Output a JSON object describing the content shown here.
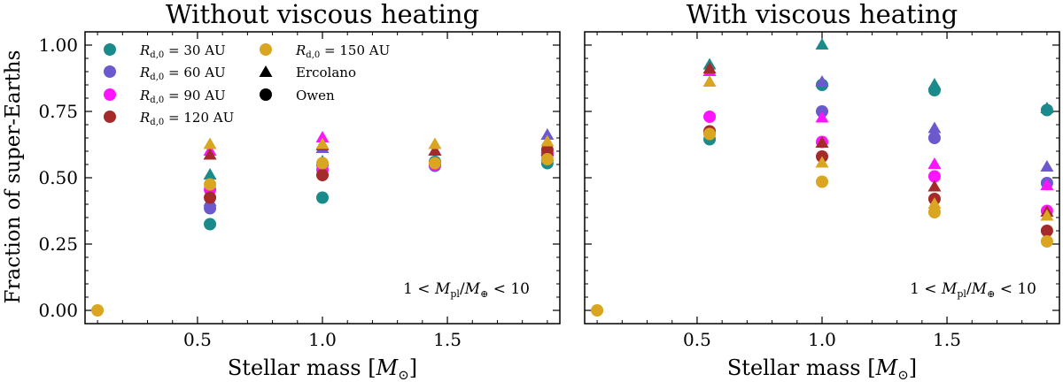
{
  "chart_data": [
    {
      "type": "scatter",
      "title": "Without viscous heating",
      "xlabel": "Stellar mass [M⊙]",
      "ylabel": "Fraction of super-Earths",
      "xlim": [
        0.05,
        1.95
      ],
      "ylim": [
        -0.05,
        1.05
      ],
      "xticks": [
        "0.5",
        "1.0",
        "1.5"
      ],
      "xtick_values": [
        0.5,
        1.0,
        1.5
      ],
      "yticks": [
        "0.00",
        "0.25",
        "0.50",
        "0.75",
        "1.00"
      ],
      "ytick_values": [
        0.0,
        0.25,
        0.5,
        0.75,
        1.0
      ],
      "annotation": "1 < Mpl/M⊕ < 10",
      "legend": {
        "placement": "top-left",
        "entries": [
          {
            "label": "Rd,0 = 30 AU",
            "marker": "circle",
            "color": "#1b8a8a"
          },
          {
            "label": "Rd,0 = 60 AU",
            "marker": "circle",
            "color": "#6a5acd"
          },
          {
            "label": "Rd,0 = 90 AU",
            "marker": "circle",
            "color": "#ff14ff"
          },
          {
            "label": "Rd,0 = 120 AU",
            "marker": "circle",
            "color": "#a52a2a"
          },
          {
            "label": "Rd,0 = 150 AU",
            "marker": "circle",
            "color": "#daa520"
          },
          {
            "label": "Ercolano",
            "marker": "triangle",
            "color": "#000000"
          },
          {
            "label": "Owen",
            "marker": "circle",
            "color": "#000000"
          }
        ]
      },
      "series": [
        {
          "name": "30 AU Ercolano",
          "color": "#1b8a8a",
          "marker": "triangle",
          "points": [
            [
              0.55,
              0.51
            ],
            [
              1.0,
              0.56
            ],
            [
              1.45,
              0.6
            ],
            [
              1.9,
              0.58
            ]
          ]
        },
        {
          "name": "30 AU Owen",
          "color": "#1b8a8a",
          "marker": "circle",
          "points": [
            [
              0.55,
              0.325
            ],
            [
              1.0,
              0.425
            ],
            [
              1.45,
              0.56
            ],
            [
              1.9,
              0.555
            ]
          ]
        },
        {
          "name": "60 AU Ercolano",
          "color": "#6a5acd",
          "marker": "triangle",
          "points": [
            [
              0.55,
              0.41
            ],
            [
              1.0,
              0.61
            ],
            [
              1.45,
              0.6
            ],
            [
              1.9,
              0.66
            ]
          ]
        },
        {
          "name": "60 AU Owen",
          "color": "#6a5acd",
          "marker": "circle",
          "points": [
            [
              0.55,
              0.385
            ],
            [
              1.0,
              0.55
            ],
            [
              1.45,
              0.545
            ],
            [
              1.9,
              0.585
            ]
          ]
        },
        {
          "name": "90 AU Ercolano",
          "color": "#ff14ff",
          "marker": "triangle",
          "points": [
            [
              0.55,
              0.6
            ],
            [
              1.0,
              0.65
            ],
            [
              1.45,
              0.6
            ],
            [
              1.9,
              0.61
            ]
          ]
        },
        {
          "name": "90 AU Owen",
          "color": "#ff14ff",
          "marker": "circle",
          "points": [
            [
              0.55,
              0.455
            ],
            [
              1.0,
              0.53
            ],
            [
              1.45,
              0.55
            ],
            [
              1.9,
              0.59
            ]
          ]
        },
        {
          "name": "120 AU Ercolano",
          "color": "#a52a2a",
          "marker": "triangle",
          "points": [
            [
              0.55,
              0.585
            ],
            [
              1.0,
              0.62
            ],
            [
              1.45,
              0.6
            ],
            [
              1.9,
              0.6
            ]
          ]
        },
        {
          "name": "120 AU Owen",
          "color": "#a52a2a",
          "marker": "circle",
          "points": [
            [
              0.55,
              0.425
            ],
            [
              1.0,
              0.51
            ],
            [
              1.45,
              0.555
            ],
            [
              1.9,
              0.605
            ]
          ]
        },
        {
          "name": "150 AU Ercolano",
          "color": "#daa520",
          "marker": "triangle",
          "points": [
            [
              0.55,
              0.625
            ],
            [
              1.0,
              0.625
            ],
            [
              1.45,
              0.625
            ],
            [
              1.9,
              0.635
            ]
          ]
        },
        {
          "name": "150 AU Owen",
          "color": "#daa520",
          "marker": "circle",
          "points": [
            [
              0.1,
              0.0
            ],
            [
              0.55,
              0.475
            ],
            [
              1.0,
              0.555
            ],
            [
              1.45,
              0.555
            ],
            [
              1.9,
              0.57
            ]
          ]
        }
      ]
    },
    {
      "type": "scatter",
      "title": "With viscous heating",
      "xlabel": "Stellar mass [M⊙]",
      "ylabel": "",
      "xlim": [
        0.05,
        1.95
      ],
      "ylim": [
        -0.05,
        1.05
      ],
      "xticks": [
        "0.5",
        "1.0",
        "1.5"
      ],
      "xtick_values": [
        0.5,
        1.0,
        1.5
      ],
      "yticks": [],
      "ytick_values": [
        0.0,
        0.25,
        0.5,
        0.75,
        1.0
      ],
      "annotation": "1 < Mpl/M⊕ < 10",
      "series": [
        {
          "name": "30 AU Ercolano",
          "color": "#1b8a8a",
          "marker": "triangle",
          "points": [
            [
              0.55,
              0.925
            ],
            [
              1.0,
              1.0
            ],
            [
              1.45,
              0.85
            ],
            [
              1.9,
              0.76
            ]
          ]
        },
        {
          "name": "30 AU Owen",
          "color": "#1b8a8a",
          "marker": "circle",
          "points": [
            [
              0.55,
              0.645
            ],
            [
              1.0,
              0.85
            ],
            [
              1.45,
              0.83
            ],
            [
              1.9,
              0.755
            ]
          ]
        },
        {
          "name": "60 AU Ercolano",
          "color": "#6a5acd",
          "marker": "triangle",
          "points": [
            [
              0.55,
              0.9
            ],
            [
              1.0,
              0.86
            ],
            [
              1.45,
              0.685
            ],
            [
              1.9,
              0.54
            ]
          ]
        },
        {
          "name": "60 AU Owen",
          "color": "#6a5acd",
          "marker": "circle",
          "points": [
            [
              0.55,
              0.67
            ],
            [
              1.0,
              0.75
            ],
            [
              1.45,
              0.65
            ],
            [
              1.9,
              0.48
            ]
          ]
        },
        {
          "name": "90 AU Ercolano",
          "color": "#ff14ff",
          "marker": "triangle",
          "points": [
            [
              0.55,
              0.9
            ],
            [
              1.0,
              0.725
            ],
            [
              1.45,
              0.55
            ],
            [
              1.9,
              0.47
            ]
          ]
        },
        {
          "name": "90 AU Owen",
          "color": "#ff14ff",
          "marker": "circle",
          "points": [
            [
              0.55,
              0.73
            ],
            [
              1.0,
              0.635
            ],
            [
              1.45,
              0.505
            ],
            [
              1.9,
              0.375
            ]
          ]
        },
        {
          "name": "120 AU Ercolano",
          "color": "#a52a2a",
          "marker": "triangle",
          "points": [
            [
              0.55,
              0.91
            ],
            [
              1.0,
              0.63
            ],
            [
              1.45,
              0.465
            ],
            [
              1.9,
              0.37
            ]
          ]
        },
        {
          "name": "120 AU Owen",
          "color": "#a52a2a",
          "marker": "circle",
          "points": [
            [
              0.55,
              0.675
            ],
            [
              1.0,
              0.58
            ],
            [
              1.45,
              0.42
            ],
            [
              1.9,
              0.3
            ]
          ]
        },
        {
          "name": "150 AU Ercolano",
          "color": "#daa520",
          "marker": "triangle",
          "points": [
            [
              0.55,
              0.86
            ],
            [
              1.0,
              0.555
            ],
            [
              1.45,
              0.4
            ],
            [
              1.9,
              0.355
            ]
          ]
        },
        {
          "name": "150 AU Owen",
          "color": "#daa520",
          "marker": "circle",
          "points": [
            [
              0.1,
              0.0
            ],
            [
              0.55,
              0.665
            ],
            [
              1.0,
              0.485
            ],
            [
              1.45,
              0.37
            ],
            [
              1.9,
              0.26
            ]
          ]
        }
      ]
    }
  ]
}
